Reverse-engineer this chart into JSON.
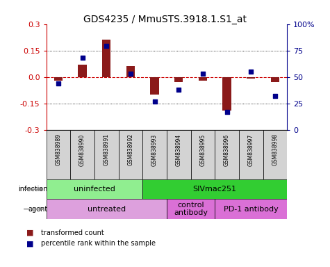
{
  "title": "GDS4235 / MmuSTS.3918.1.S1_at",
  "samples": [
    "GSM838989",
    "GSM838990",
    "GSM838991",
    "GSM838992",
    "GSM838993",
    "GSM838994",
    "GSM838995",
    "GSM838996",
    "GSM838997",
    "GSM838998"
  ],
  "transformed_count": [
    -0.02,
    0.07,
    0.21,
    0.06,
    -0.1,
    -0.03,
    -0.02,
    -0.19,
    -0.01,
    -0.03
  ],
  "percentile_rank": [
    44,
    68,
    79,
    53,
    27,
    38,
    53,
    17,
    55,
    32
  ],
  "ylim": [
    -0.3,
    0.3
  ],
  "yticks_left": [
    -0.3,
    -0.15,
    0.0,
    0.15,
    0.3
  ],
  "yticks_right": [
    0,
    25,
    50,
    75,
    100
  ],
  "bar_color": "#8B1A1A",
  "dot_color": "#00008B",
  "hline_color": "#CC0000",
  "grid_color": "#000000",
  "infection_groups": [
    {
      "label": "uninfected",
      "start": 0,
      "end": 4,
      "color": "#90EE90"
    },
    {
      "label": "SIVmac251",
      "start": 4,
      "end": 10,
      "color": "#32CD32"
    }
  ],
  "agent_groups": [
    {
      "label": "untreated",
      "start": 0,
      "end": 5,
      "color": "#DDA0DD"
    },
    {
      "label": "control\nantibody",
      "start": 5,
      "end": 7,
      "color": "#DA70D6"
    },
    {
      "label": "PD-1 antibody",
      "start": 7,
      "end": 10,
      "color": "#DA70D6"
    }
  ],
  "legend_items": [
    {
      "label": "transformed count",
      "color": "#8B1A1A"
    },
    {
      "label": "percentile rank within the sample",
      "color": "#00008B"
    }
  ]
}
